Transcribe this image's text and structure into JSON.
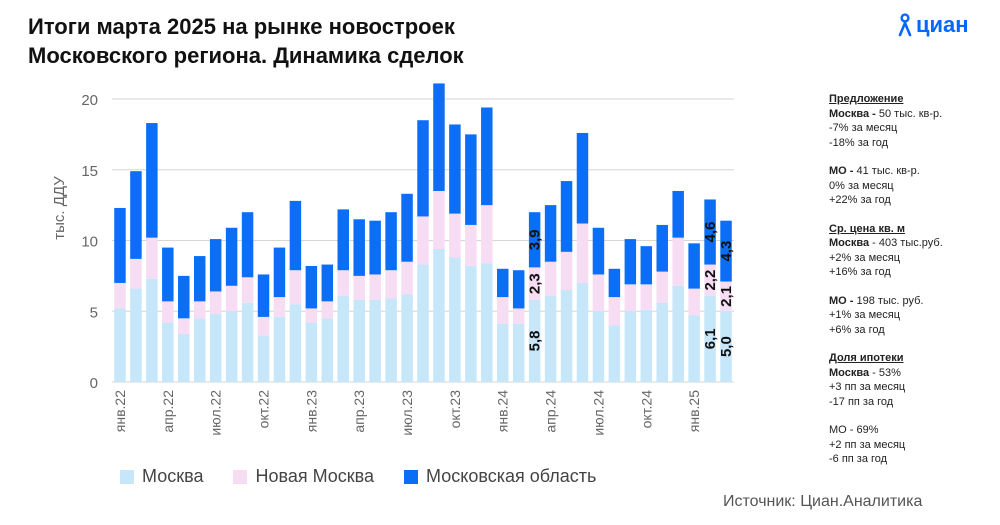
{
  "title_line1": "Итоги марта 2025 на рынке новостроек",
  "title_line2": "Московского региона. Динамика сделок",
  "logo_text": "циан",
  "colors": {
    "moscow": "#c6e6f9",
    "new_moscow": "#f6ddf3",
    "mo": "#0b6ef5",
    "brand": "#0468ff"
  },
  "chart_data": {
    "type": "bar",
    "stacked": true,
    "ylabel": "тыс. ДДУ",
    "ylim": [
      0,
      20
    ],
    "yticks": [
      0,
      5,
      10,
      15,
      20
    ],
    "grid": true,
    "tick_labels": [
      {
        "index": 0,
        "label": "янв.22"
      },
      {
        "index": 3,
        "label": "апр.22"
      },
      {
        "index": 6,
        "label": "июл.22"
      },
      {
        "index": 9,
        "label": "окт.22"
      },
      {
        "index": 12,
        "label": "янв.23"
      },
      {
        "index": 15,
        "label": "апр.23"
      },
      {
        "index": 18,
        "label": "июл.23"
      },
      {
        "index": 21,
        "label": "окт.23"
      },
      {
        "index": 24,
        "label": "янв.24"
      },
      {
        "index": 27,
        "label": "апр.24"
      },
      {
        "index": 30,
        "label": "июл.24"
      },
      {
        "index": 33,
        "label": "окт.24"
      },
      {
        "index": 36,
        "label": "янв.25"
      }
    ],
    "series": [
      {
        "name": "Москва",
        "color": "#c6e6f9",
        "values": [
          5.2,
          6.6,
          7.3,
          4.2,
          3.4,
          4.5,
          4.8,
          5.0,
          5.6,
          3.3,
          4.6,
          5.5,
          4.2,
          4.5,
          6.1,
          5.8,
          5.8,
          5.9,
          6.2,
          8.3,
          9.4,
          8.8,
          8.2,
          8.4,
          4.1,
          4.1,
          5.8,
          6.1,
          6.5,
          7.0,
          5.0,
          4.0,
          5.0,
          5.1,
          5.6,
          6.8,
          4.7,
          6.1,
          5.0
        ]
      },
      {
        "name": "Новая Москва",
        "color": "#f6ddf3",
        "values": [
          1.8,
          2.1,
          2.9,
          1.5,
          1.1,
          1.2,
          1.6,
          1.8,
          1.8,
          1.3,
          1.4,
          2.4,
          1.0,
          1.2,
          1.8,
          1.7,
          1.8,
          2.0,
          2.3,
          3.4,
          4.1,
          3.1,
          2.9,
          4.1,
          1.9,
          1.1,
          2.3,
          2.4,
          2.7,
          4.2,
          2.6,
          2.0,
          1.9,
          1.8,
          2.2,
          3.4,
          1.9,
          2.2,
          2.1
        ]
      },
      {
        "name": "Московская область",
        "color": "#0b6ef5",
        "values": [
          5.3,
          6.2,
          8.1,
          3.8,
          3.0,
          3.2,
          3.7,
          4.1,
          4.6,
          3.0,
          3.5,
          4.9,
          3.0,
          2.6,
          4.3,
          4.0,
          3.8,
          4.1,
          4.8,
          6.8,
          7.6,
          6.3,
          6.4,
          6.9,
          2.0,
          2.7,
          3.9,
          4.0,
          5.0,
          6.4,
          3.3,
          2.0,
          3.2,
          2.7,
          3.3,
          3.3,
          3.2,
          4.6,
          4.3
        ]
      }
    ],
    "data_labels": [
      {
        "index": 26,
        "series": 0,
        "text": "5,8"
      },
      {
        "index": 26,
        "series": 1,
        "text": "2,3"
      },
      {
        "index": 26,
        "series": 2,
        "text": "3,9"
      },
      {
        "index": 37,
        "series": 0,
        "text": "6,1"
      },
      {
        "index": 37,
        "series": 1,
        "text": "2,2"
      },
      {
        "index": 37,
        "series": 2,
        "text": "4,6"
      },
      {
        "index": 38,
        "series": 0,
        "text": "5,0"
      },
      {
        "index": 38,
        "series": 1,
        "text": "2,1"
      },
      {
        "index": 38,
        "series": 2,
        "text": "4,3"
      }
    ]
  },
  "side": {
    "offer": {
      "heading": "Предложение",
      "l1_bold": "Москва -",
      "l1_rest": " 50 тыс. кв-р.",
      "l2": "-7% за месяц",
      "l3": "-18% за год"
    },
    "offer_mo": {
      "l1_bold": "МО -",
      "l1_rest": " 41 тыс. кв-р.",
      "l2": "0% за месяц",
      "l3": "+22% за год"
    },
    "price": {
      "heading": "Ср. цена кв. м",
      "l1_bold": "Москва",
      "l1_rest": " - 403 тыс.руб.",
      "l2": "+2% за месяц",
      "l3": "+16% за год"
    },
    "price_mo": {
      "l1_bold": "МО -",
      "l1_rest": " 198 тыс. руб.",
      "l2": "+1% за месяц",
      "l3": "+6% за год"
    },
    "mortgage": {
      "heading": "Доля ипотеки",
      "l1_bold": "Москва",
      "l1_rest": " - 53%",
      "l2": "+3 пп за месяц",
      "l3": "-17 пп за год"
    },
    "mortgage_mo": {
      "l1": "МО - 69%",
      "l2": "+2 пп за месяц",
      "l3": "-6 пп за год"
    }
  },
  "legend": {
    "moscow": "Москва",
    "new_moscow": "Новая Москва",
    "mo": "Московская область"
  },
  "source": "Источник: Циан.Аналитика"
}
